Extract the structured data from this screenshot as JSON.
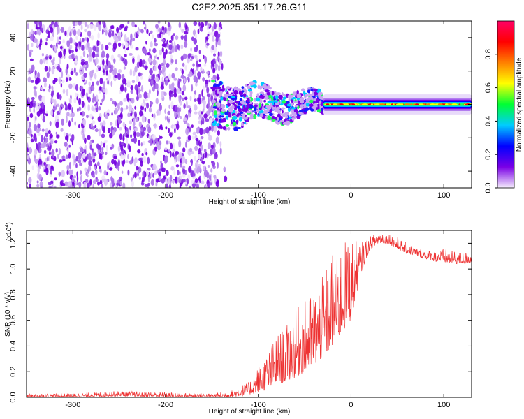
{
  "title": "C2E2.2025.351.17.26.G11",
  "chart_data": [
    {
      "type": "heatmap",
      "title": "C2E2.2025.351.17.26.G11",
      "xlabel": "Height of straight line (km)",
      "ylabel": "Frequency (Hz)",
      "xlim": [
        -350,
        130
      ],
      "ylim": [
        -50,
        50
      ],
      "xticks": [
        -300,
        -200,
        -100,
        0,
        100
      ],
      "yticks": [
        -40,
        -20,
        0,
        20,
        40
      ],
      "xtick_labels": [
        "-300",
        "-200",
        "-100",
        "0",
        "100"
      ],
      "ytick_labels": [
        "-40",
        "-20",
        "0",
        "20",
        "40"
      ],
      "noise_region_x": [
        -350,
        -140
      ],
      "transition_region_x": [
        -150,
        -30
      ],
      "coherent_band_x": [
        -30,
        130
      ],
      "coherent_band_center_hz": 0,
      "coherent_band_halfwidth_hz": 2,
      "colorbar": {
        "label": "Normalized spectral amplitude",
        "range": [
          0,
          1
        ],
        "ticks": [
          0.0,
          0.2,
          0.4,
          0.6,
          0.8
        ],
        "tick_labels": [
          "0.0",
          "0.2",
          "0.4",
          "0.6",
          "0.8"
        ],
        "colors": [
          "#f4ecfc",
          "#7a00e6",
          "#0000ff",
          "#00ccff",
          "#00ff33",
          "#ffff00",
          "#ff8000",
          "#ff0000",
          "#ff0066"
        ]
      }
    },
    {
      "type": "line",
      "title": "",
      "xlabel": "Height of straight line (km)",
      "ylabel": "SNR (10 * v/v)",
      "yscale_label": "(x10",
      "yscale_exp": "4",
      "yscale_close": ")",
      "xlim": [
        -350,
        130
      ],
      "ylim": [
        0,
        1.3
      ],
      "xticks": [
        -300,
        -200,
        -100,
        0,
        100
      ],
      "yticks": [
        0.0,
        0.2,
        0.4,
        0.6,
        0.8,
        1.0,
        1.2
      ],
      "xtick_labels": [
        "-300",
        "-200",
        "-100",
        "0",
        "100"
      ],
      "ytick_labels": [
        "0.0",
        "0.2",
        "0.4",
        "0.6",
        "0.8",
        "1.0",
        "1.2"
      ],
      "color": "#ee3333",
      "series": [
        {
          "name": "SNR",
          "x": [
            -350,
            -300,
            -250,
            -200,
            -150,
            -130,
            -110,
            -100,
            -90,
            -80,
            -70,
            -60,
            -50,
            -40,
            -30,
            -20,
            -10,
            0,
            10,
            20,
            30,
            40,
            50,
            60,
            70,
            80,
            90,
            100,
            110,
            120,
            130
          ],
          "y_envelope_low": [
            0.0,
            0.0,
            0.01,
            0.0,
            0.0,
            0.0,
            0.02,
            0.04,
            0.06,
            0.1,
            0.12,
            0.15,
            0.2,
            0.25,
            0.3,
            0.4,
            0.5,
            0.6,
            0.95,
            1.15,
            1.2,
            1.2,
            1.15,
            1.12,
            1.1,
            1.08,
            1.06,
            1.05,
            1.04,
            1.04,
            1.05
          ],
          "y_envelope_high": [
            0.03,
            0.03,
            0.05,
            0.04,
            0.03,
            0.05,
            0.12,
            0.25,
            0.35,
            0.5,
            0.55,
            0.7,
            0.75,
            0.85,
            0.95,
            1.15,
            1.2,
            1.25,
            1.2,
            1.25,
            1.3,
            1.28,
            1.25,
            1.2,
            1.17,
            1.15,
            1.14,
            1.16,
            1.14,
            1.13,
            1.13
          ]
        }
      ]
    }
  ]
}
